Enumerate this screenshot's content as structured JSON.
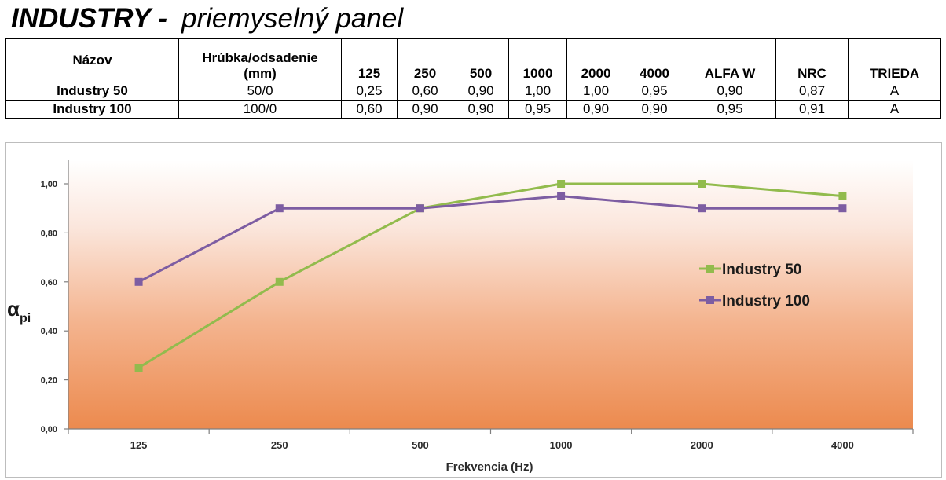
{
  "title": {
    "bold": "INDUSTRY -",
    "light": "priemyselný panel"
  },
  "table": {
    "headers": [
      "Názov",
      "Hrúbka/odsadenie (mm)",
      "125",
      "250",
      "500",
      "1000",
      "2000",
      "4000",
      "ALFA W",
      "NRC",
      "TRIEDA"
    ],
    "rows": [
      [
        "Industry 50",
        "50/0",
        "0,25",
        "0,60",
        "0,90",
        "1,00",
        "1,00",
        "0,95",
        "0,90",
        "0,87",
        "A"
      ],
      [
        "Industry 100",
        "100/0",
        "0,60",
        "0,90",
        "0,90",
        "0,95",
        "0,90",
        "0,90",
        "0,95",
        "0,91",
        "A"
      ]
    ]
  },
  "chart_data": {
    "type": "line",
    "categories": [
      "125",
      "250",
      "500",
      "1000",
      "2000",
      "4000"
    ],
    "series": [
      {
        "name": "Industry 50",
        "values": [
          0.25,
          0.6,
          0.9,
          1.0,
          1.0,
          0.95
        ],
        "color": "#92BB4D"
      },
      {
        "name": "Industry 100",
        "values": [
          0.6,
          0.9,
          0.9,
          0.95,
          0.9,
          0.9
        ],
        "color": "#7D5DA2"
      }
    ],
    "xlabel": "Frekvencia (Hz)",
    "ylabel": "α",
    "ylabel_sub": "pi",
    "ylim": [
      0,
      1.0
    ],
    "yticks": [
      "0,00",
      "0,20",
      "0,40",
      "0,60",
      "0,80",
      "1,00"
    ],
    "ytick_values": [
      0,
      0.2,
      0.4,
      0.6,
      0.8,
      1.0
    ],
    "grid": false,
    "legend": "right",
    "background_gradient": [
      "#ffffff",
      "#EC8A4E"
    ]
  }
}
